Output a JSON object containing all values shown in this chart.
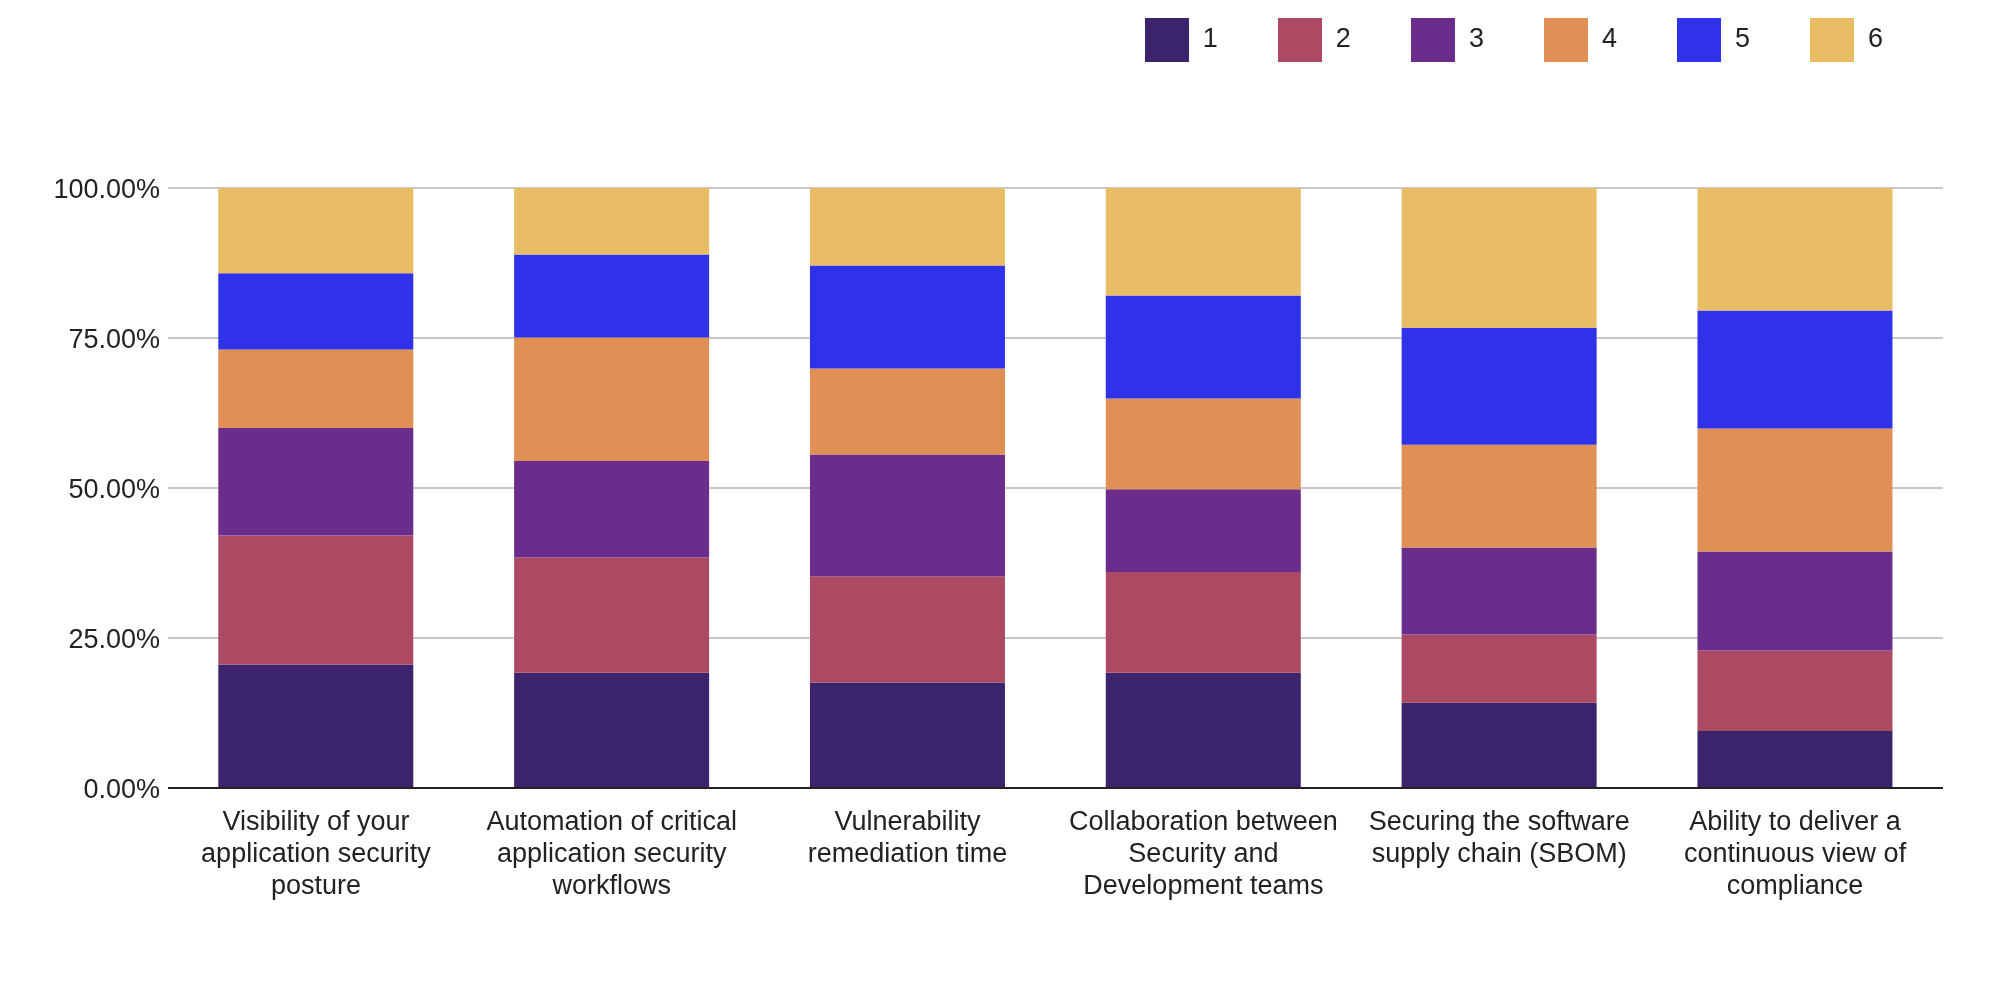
{
  "chart_data": {
    "type": "bar",
    "stacked": true,
    "categories": [
      "Visibility of your application security posture",
      "Automation of critical application security workflows",
      "Vulnerability remediation time",
      "Collaboration between Security and Development teams",
      "Securing the software supply chain (SBOM)",
      "Ability to deliver a continuous view of compliance"
    ],
    "series": [
      {
        "name": "1",
        "color": "#3b246b",
        "values": [
          20.6,
          19.2,
          17.6,
          19.2,
          14.2,
          9.5
        ]
      },
      {
        "name": "2",
        "color": "#ad4a63",
        "values": [
          21.5,
          19.2,
          17.7,
          16.8,
          11.4,
          13.4
        ]
      },
      {
        "name": "3",
        "color": "#6a2d8c",
        "values": [
          17.9,
          16.1,
          20.3,
          13.8,
          14.5,
          16.5
        ]
      },
      {
        "name": "4",
        "color": "#e08f55",
        "values": [
          13.1,
          20.6,
          14.3,
          15.1,
          17.1,
          20.5
        ]
      },
      {
        "name": "5",
        "color": "#2f32e8",
        "values": [
          12.7,
          13.8,
          17.2,
          17.2,
          19.5,
          19.7
        ]
      },
      {
        "name": "6",
        "color": "#e8bd65",
        "values": [
          14.2,
          11.1,
          12.9,
          17.9,
          23.3,
          20.4
        ]
      }
    ],
    "ylim": [
      0,
      100
    ],
    "yticks": [
      {
        "value": 0,
        "label": "0.00%"
      },
      {
        "value": 25,
        "label": "25.00%"
      },
      {
        "value": 50,
        "label": "50.00%"
      },
      {
        "value": 75,
        "label": "75.00%"
      },
      {
        "value": 100,
        "label": "100.00%"
      }
    ],
    "grid": "y",
    "legend": "top right"
  }
}
